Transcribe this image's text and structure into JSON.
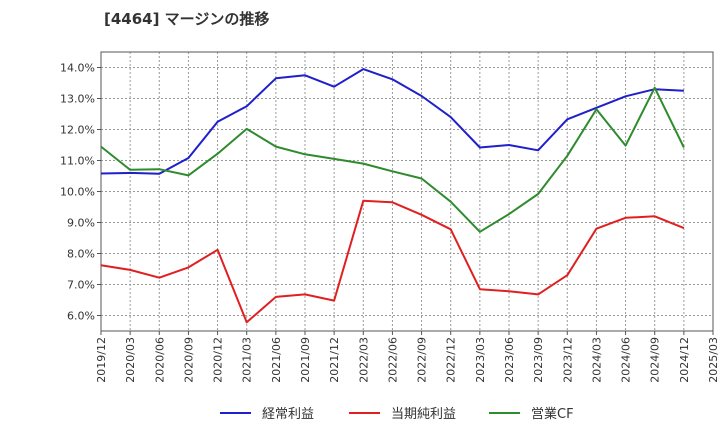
{
  "chart_data": {
    "type": "line",
    "title": "[4464]  マージンの推移",
    "xlabel": "",
    "ylabel": "",
    "ylim": [
      5.5,
      14.5
    ],
    "y_ticks": [
      "6.0%",
      "7.0%",
      "8.0%",
      "9.0%",
      "10.0%",
      "11.0%",
      "12.0%",
      "13.0%",
      "14.0%"
    ],
    "y_tick_values": [
      6,
      7,
      8,
      9,
      10,
      11,
      12,
      13,
      14
    ],
    "categories": [
      "2019/12",
      "2020/03",
      "2020/06",
      "2020/09",
      "2020/12",
      "2021/03",
      "2021/06",
      "2021/09",
      "2021/12",
      "2022/03",
      "2022/06",
      "2022/09",
      "2022/12",
      "2023/03",
      "2023/06",
      "2023/09",
      "2023/12",
      "2024/03",
      "2024/06",
      "2024/09",
      "2024/12",
      "2025/03"
    ],
    "grid": true,
    "legend_position": "bottom",
    "series": [
      {
        "name": "経常利益",
        "color": "#1f1fcc",
        "values": [
          10.58,
          10.6,
          10.57,
          11.08,
          12.25,
          12.75,
          13.65,
          13.75,
          13.38,
          13.95,
          13.62,
          13.08,
          12.4,
          11.42,
          11.5,
          11.33,
          12.33,
          12.7,
          13.07,
          13.3,
          13.25,
          null
        ]
      },
      {
        "name": "当期純利益",
        "color": "#e02020",
        "values": [
          7.62,
          7.47,
          7.22,
          7.55,
          8.12,
          5.78,
          6.6,
          6.68,
          6.48,
          9.7,
          9.65,
          9.25,
          8.78,
          6.85,
          6.78,
          6.68,
          7.3,
          8.8,
          9.15,
          9.2,
          8.82,
          null
        ]
      },
      {
        "name": "営業CF",
        "color": "#2e8b2e",
        "values": [
          11.45,
          10.7,
          10.72,
          10.52,
          11.22,
          12.02,
          11.45,
          11.2,
          11.05,
          10.9,
          10.65,
          10.42,
          9.67,
          8.7,
          9.27,
          9.92,
          11.15,
          12.65,
          11.48,
          13.35,
          11.42,
          null
        ]
      }
    ]
  }
}
